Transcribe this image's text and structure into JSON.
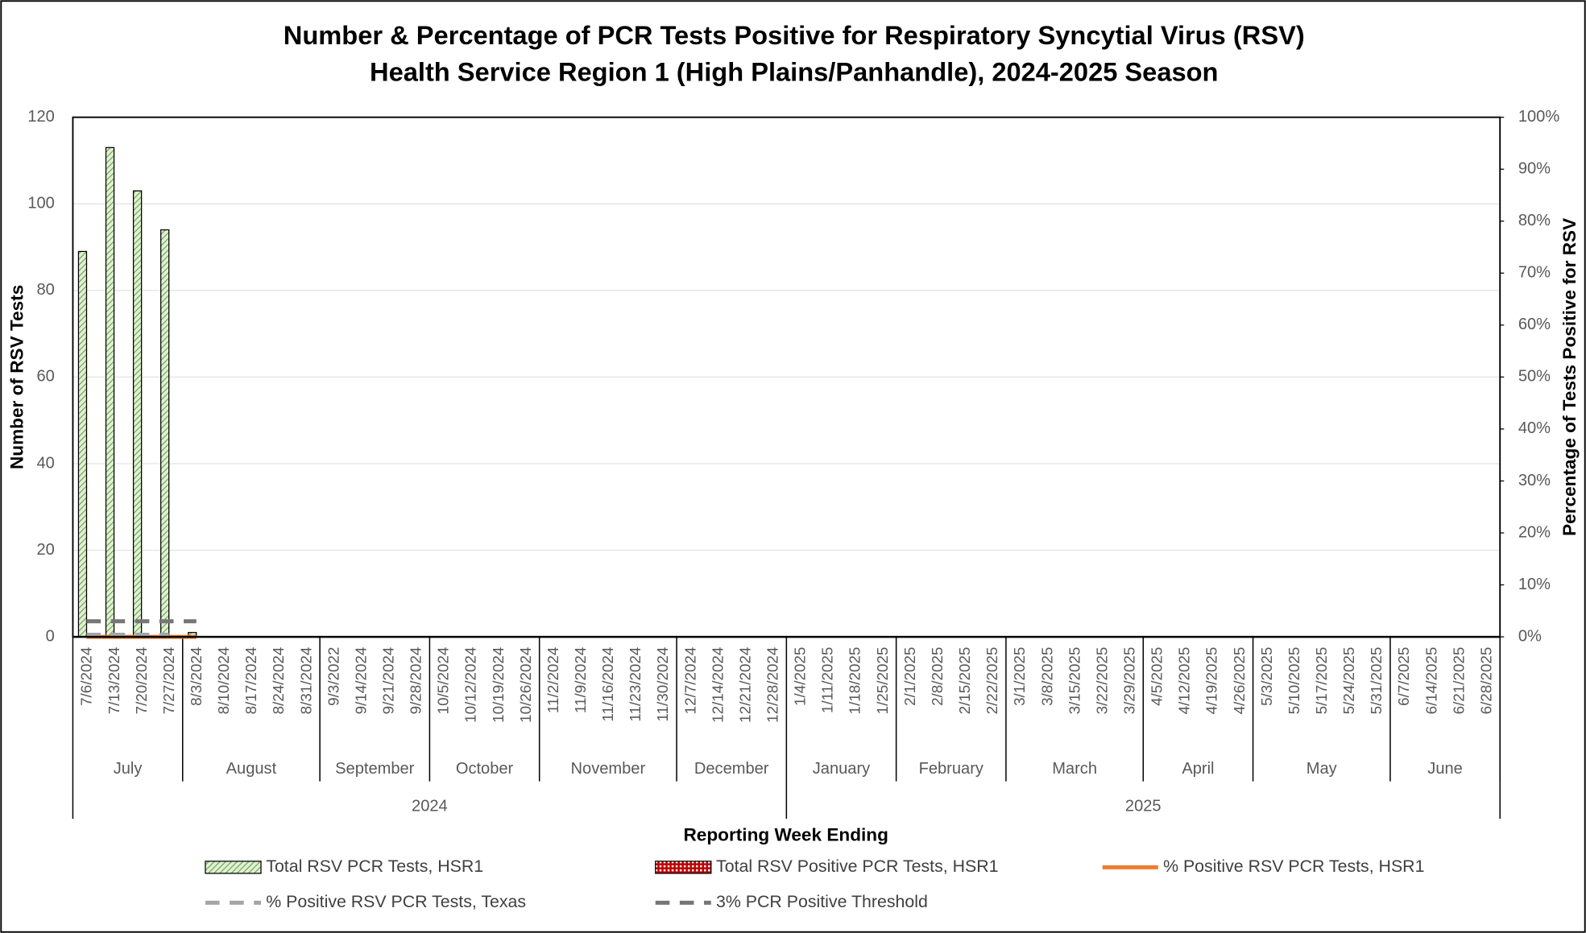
{
  "chart_data": {
    "type": "combo",
    "title": "Number & Percentage of PCR Tests Positive for Respiratory Syncytial Virus (RSV)",
    "subtitle": "Health Service Region 1 (High Plains/Panhandle), 2024-2025 Season",
    "x_label": "Reporting Week Ending",
    "y_label": "Number of RSV Tests",
    "y2_label": "Percentage of Tests Positive for RSV",
    "categories": [
      "7/6/2024",
      "7/13/2024",
      "7/20/2024",
      "7/27/2024",
      "8/3/2024",
      "8/10/2024",
      "8/17/2024",
      "8/24/2024",
      "8/31/2024",
      "9/3/2022",
      "9/14/2024",
      "9/21/2024",
      "9/28/2024",
      "10/5/2024",
      "10/12/2024",
      "10/19/2024",
      "10/26/2024",
      "11/2/2024",
      "11/9/2024",
      "11/16/2024",
      "11/23/2024",
      "11/30/2024",
      "12/7/2024",
      "12/14/2024",
      "12/21/2024",
      "12/28/2024",
      "1/4/2025",
      "1/11/2025",
      "1/18/2025",
      "1/25/2025",
      "2/1/2025",
      "2/8/2025",
      "2/15/2025",
      "2/22/2025",
      "3/1/2025",
      "3/8/2025",
      "3/15/2025",
      "3/22/2025",
      "3/29/2025",
      "4/5/2025",
      "4/12/2025",
      "4/19/2025",
      "4/26/2025",
      "5/3/2025",
      "5/10/2025",
      "5/17/2025",
      "5/24/2025",
      "5/31/2025",
      "6/7/2025",
      "6/14/2025",
      "6/21/2025",
      "6/28/2025"
    ],
    "months": [
      "July",
      "August",
      "September",
      "October",
      "November",
      "December",
      "January",
      "February",
      "March",
      "April",
      "May",
      "June"
    ],
    "years": [
      "2024",
      "2025"
    ],
    "ylim": [
      0,
      120
    ],
    "yticks": [
      0,
      20,
      40,
      60,
      80,
      100,
      120
    ],
    "y2lim": [
      0,
      100
    ],
    "y2ticks": [
      {
        "value": 0,
        "label": "0%"
      },
      {
        "value": 10,
        "label": "10%"
      },
      {
        "value": 20,
        "label": "20%"
      },
      {
        "value": 30,
        "label": "30%"
      },
      {
        "value": 40,
        "label": "40%"
      },
      {
        "value": 50,
        "label": "50%"
      },
      {
        "value": 60,
        "label": "60%"
      },
      {
        "value": 70,
        "label": "70%"
      },
      {
        "value": 80,
        "label": "80%"
      },
      {
        "value": 90,
        "label": "90%"
      },
      {
        "value": 100,
        "label": "100%"
      }
    ],
    "grid": true,
    "series": [
      {
        "name": "Total RSV PCR Tests, HSR1",
        "type": "bar",
        "color": "#70ad47",
        "pattern": "hatch",
        "values": [
          89,
          113,
          103,
          94,
          1,
          null,
          null,
          null,
          null,
          null,
          null,
          null,
          null,
          null,
          null,
          null,
          null,
          null,
          null,
          null,
          null,
          null,
          null,
          null,
          null,
          null,
          null,
          null,
          null,
          null,
          null,
          null,
          null,
          null,
          null,
          null,
          null,
          null,
          null,
          null,
          null,
          null,
          null,
          null,
          null,
          null,
          null,
          null,
          null,
          null,
          null,
          null
        ]
      },
      {
        "name": "Total RSV Positive PCR Tests, HSR1",
        "type": "bar",
        "color": "#c00000",
        "pattern": "dots",
        "values": [
          0,
          0,
          0,
          0,
          0,
          null,
          null,
          null,
          null,
          null,
          null,
          null,
          null,
          null,
          null,
          null,
          null,
          null,
          null,
          null,
          null,
          null,
          null,
          null,
          null,
          null,
          null,
          null,
          null,
          null,
          null,
          null,
          null,
          null,
          null,
          null,
          null,
          null,
          null,
          null,
          null,
          null,
          null,
          null,
          null,
          null,
          null,
          null,
          null,
          null,
          null,
          null
        ]
      },
      {
        "name": "% Positive RSV PCR Tests, HSR1",
        "type": "line",
        "axis": "y2",
        "color": "#ed7d31",
        "dash": "solid",
        "values": [
          0,
          0,
          0,
          0,
          0,
          null,
          null,
          null,
          null,
          null,
          null,
          null,
          null,
          null,
          null,
          null,
          null,
          null,
          null,
          null,
          null,
          null,
          null,
          null,
          null,
          null,
          null,
          null,
          null,
          null,
          null,
          null,
          null,
          null,
          null,
          null,
          null,
          null,
          null,
          null,
          null,
          null,
          null,
          null,
          null,
          null,
          null,
          null,
          null,
          null,
          null,
          null
        ]
      },
      {
        "name": "% Positive RSV PCR Tests, Texas",
        "type": "line",
        "axis": "y2",
        "color": "#a5a5a5",
        "dash": "dashed",
        "values": [
          0.4,
          0.4,
          0.4,
          0.4,
          null,
          null,
          null,
          null,
          null,
          null,
          null,
          null,
          null,
          null,
          null,
          null,
          null,
          null,
          null,
          null,
          null,
          null,
          null,
          null,
          null,
          null,
          null,
          null,
          null,
          null,
          null,
          null,
          null,
          null,
          null,
          null,
          null,
          null,
          null,
          null,
          null,
          null,
          null,
          null,
          null,
          null,
          null,
          null,
          null,
          null,
          null,
          null
        ]
      },
      {
        "name": "3% PCR Positive Threshold",
        "type": "line",
        "axis": "y2",
        "color": "#767676",
        "dash": "dashed",
        "values": [
          3,
          3,
          3,
          3,
          3,
          null,
          null,
          null,
          null,
          null,
          null,
          null,
          null,
          null,
          null,
          null,
          null,
          null,
          null,
          null,
          null,
          null,
          null,
          null,
          null,
          null,
          null,
          null,
          null,
          null,
          null,
          null,
          null,
          null,
          null,
          null,
          null,
          null,
          null,
          null,
          null,
          null,
          null,
          null,
          null,
          null,
          null,
          null,
          null,
          null,
          null,
          null
        ]
      }
    ]
  }
}
